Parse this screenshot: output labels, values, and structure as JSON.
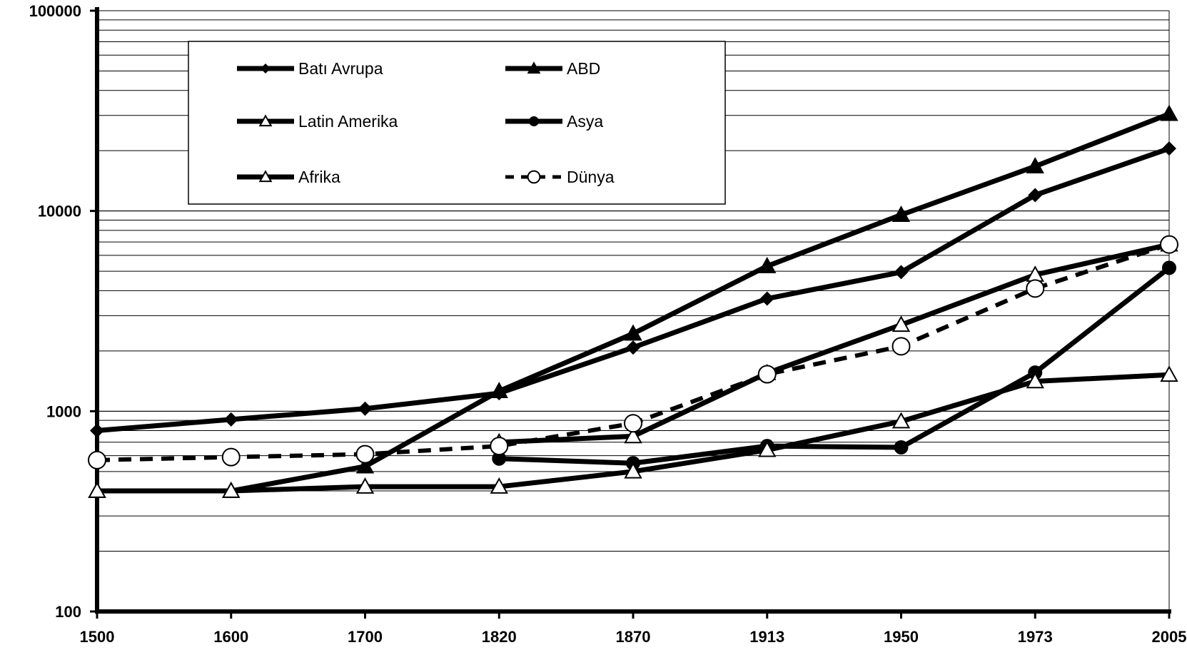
{
  "chart_data": {
    "type": "line",
    "title": "",
    "xlabel": "",
    "ylabel": "",
    "x": [
      "1500",
      "1600",
      "1700",
      "1820",
      "1870",
      "1913",
      "1950",
      "1973",
      "2005"
    ],
    "ylim": [
      100,
      100000
    ],
    "y_scale": "log",
    "y_ticks": [
      "100",
      "1000",
      "10000",
      "100000"
    ],
    "grid": true,
    "legend_position": "top-left",
    "series": [
      {
        "name": "Batı Avrupa",
        "marker": "diamond",
        "line": "solid",
        "values": [
          800,
          910,
          1030,
          1230,
          2080,
          3650,
          4950,
          12000,
          20500
        ]
      },
      {
        "name": "ABD",
        "marker": "filled-triangle",
        "line": "solid",
        "values": [
          400,
          400,
          530,
          1260,
          2440,
          5300,
          9560,
          16700,
          30500
        ]
      },
      {
        "name": "Latin Amerika",
        "marker": "open-triangle",
        "line": "solid",
        "values": [
          null,
          null,
          null,
          700,
          750,
          1550,
          2700,
          4800,
          6800
        ]
      },
      {
        "name": "Asya",
        "marker": "filled-circle",
        "line": "solid",
        "values": [
          null,
          null,
          null,
          580,
          550,
          670,
          660,
          1560,
          5200
        ]
      },
      {
        "name": "Afrika",
        "marker": "open-triangle",
        "line": "solid",
        "values": [
          400,
          400,
          420,
          420,
          500,
          640,
          890,
          1410,
          1520
        ]
      },
      {
        "name": "Dünya",
        "marker": "open-circle",
        "line": "dashed",
        "values": [
          570,
          590,
          610,
          670,
          870,
          1530,
          2110,
          4100,
          6800
        ]
      }
    ]
  }
}
